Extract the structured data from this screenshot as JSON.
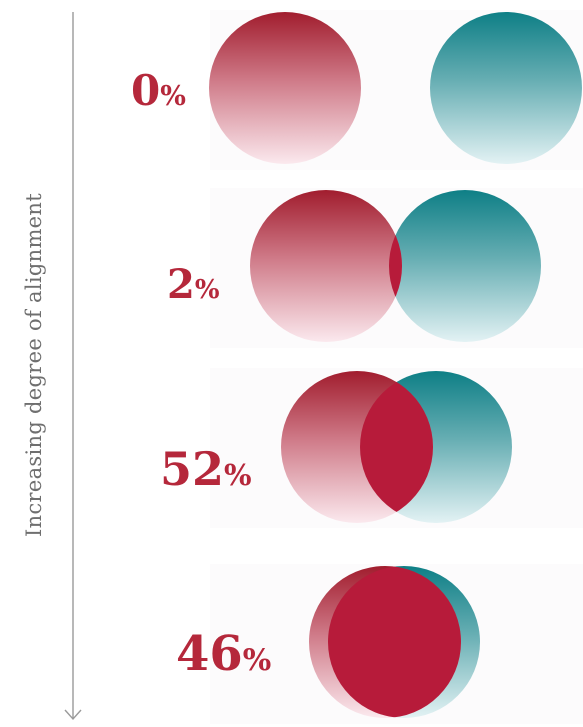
{
  "axis": {
    "label": "Increasing degree of alignment"
  },
  "colors": {
    "left_circle_top": "#a11d2e",
    "left_circle_bottom": "#fbe9ee",
    "right_circle_top": "#0e7f86",
    "right_circle_bottom": "#e3f2f4",
    "overlap": "#b71b3a",
    "label": "#b5283b",
    "axis_line": "#9a9a9a"
  },
  "rows": [
    {
      "value": "0",
      "unit": "%"
    },
    {
      "value": "2",
      "unit": "%"
    },
    {
      "value": "52",
      "unit": "%"
    },
    {
      "value": "46",
      "unit": "%"
    }
  ]
}
